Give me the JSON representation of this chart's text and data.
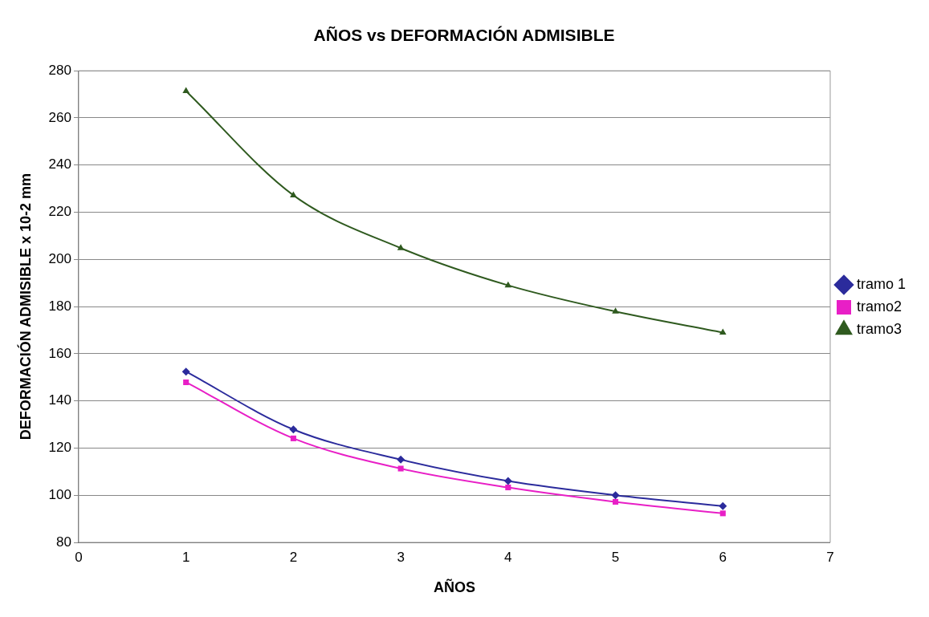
{
  "chart_data": {
    "type": "line",
    "title": "AÑOS vs DEFORMACIÓN ADMISIBLE",
    "xlabel": "AÑOS",
    "ylabel": "DEFORMACIÓN ADMISIBLE x 10-2 mm",
    "x": [
      1,
      2,
      3,
      4,
      5,
      6
    ],
    "series": [
      {
        "name": "tramo 1",
        "color": "#2b2b9c",
        "marker": "diamond",
        "values": [
          152.4,
          127.9,
          115.1,
          106,
          100,
          95.4
        ]
      },
      {
        "name": "tramo2",
        "color": "#e81fc6",
        "marker": "square",
        "values": [
          147.9,
          124.1,
          111.3,
          103.3,
          97.2,
          92.3
        ]
      },
      {
        "name": "tramo3",
        "color": "#2f5a1f",
        "marker": "triangle",
        "values": [
          271.4,
          227.2,
          204.8,
          189,
          177.9,
          169
        ]
      }
    ],
    "xlim": [
      0,
      7
    ],
    "xticks": [
      0,
      1,
      2,
      3,
      4,
      5,
      6,
      7
    ],
    "ylim": [
      80,
      280
    ],
    "yticks": [
      80,
      100,
      120,
      140,
      160,
      180,
      200,
      220,
      240,
      260,
      280
    ],
    "grid": "y",
    "legend": "right",
    "line_style": "solid"
  }
}
